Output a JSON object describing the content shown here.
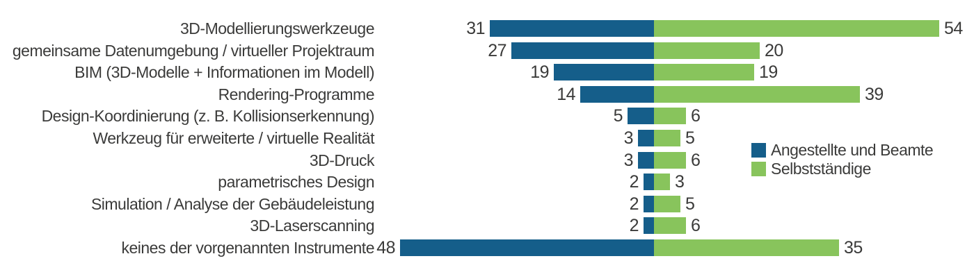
{
  "chart_data": {
    "type": "bar",
    "variant": "diverging-horizontal",
    "title": "",
    "categories": [
      "3D-Modellierungswerkzeuge",
      "gemeinsame Datenumgebung / virtueller Projektraum",
      "BIM (3D-Modelle + Informationen im Modell)",
      "Rendering-Programme",
      "Design-Koordinierung (z. B. Kollisionserkennung)",
      "Werkzeug für erweiterte / virtuelle Realität",
      "3D-Druck",
      "parametrisches Design",
      "Simulation / Analyse der Gebäudeleistung",
      "3D-Laserscanning",
      "keines der vorgenannten Instrumente"
    ],
    "series": [
      {
        "name": "Angestellte und Beamte",
        "side": "left",
        "color": "#155e8a",
        "values": [
          31,
          27,
          19,
          14,
          5,
          3,
          3,
          2,
          2,
          2,
          48
        ]
      },
      {
        "name": "Selbstständige",
        "side": "right",
        "color": "#88c45c",
        "values": [
          54,
          20,
          19,
          39,
          6,
          5,
          6,
          3,
          5,
          6,
          35
        ]
      }
    ],
    "value_labels": "at-outer-bar-ends",
    "legend_position": "center-right",
    "grid": false,
    "axis_lines": false,
    "text_color": "#3b3b3a",
    "background_color": "#ffffff"
  }
}
